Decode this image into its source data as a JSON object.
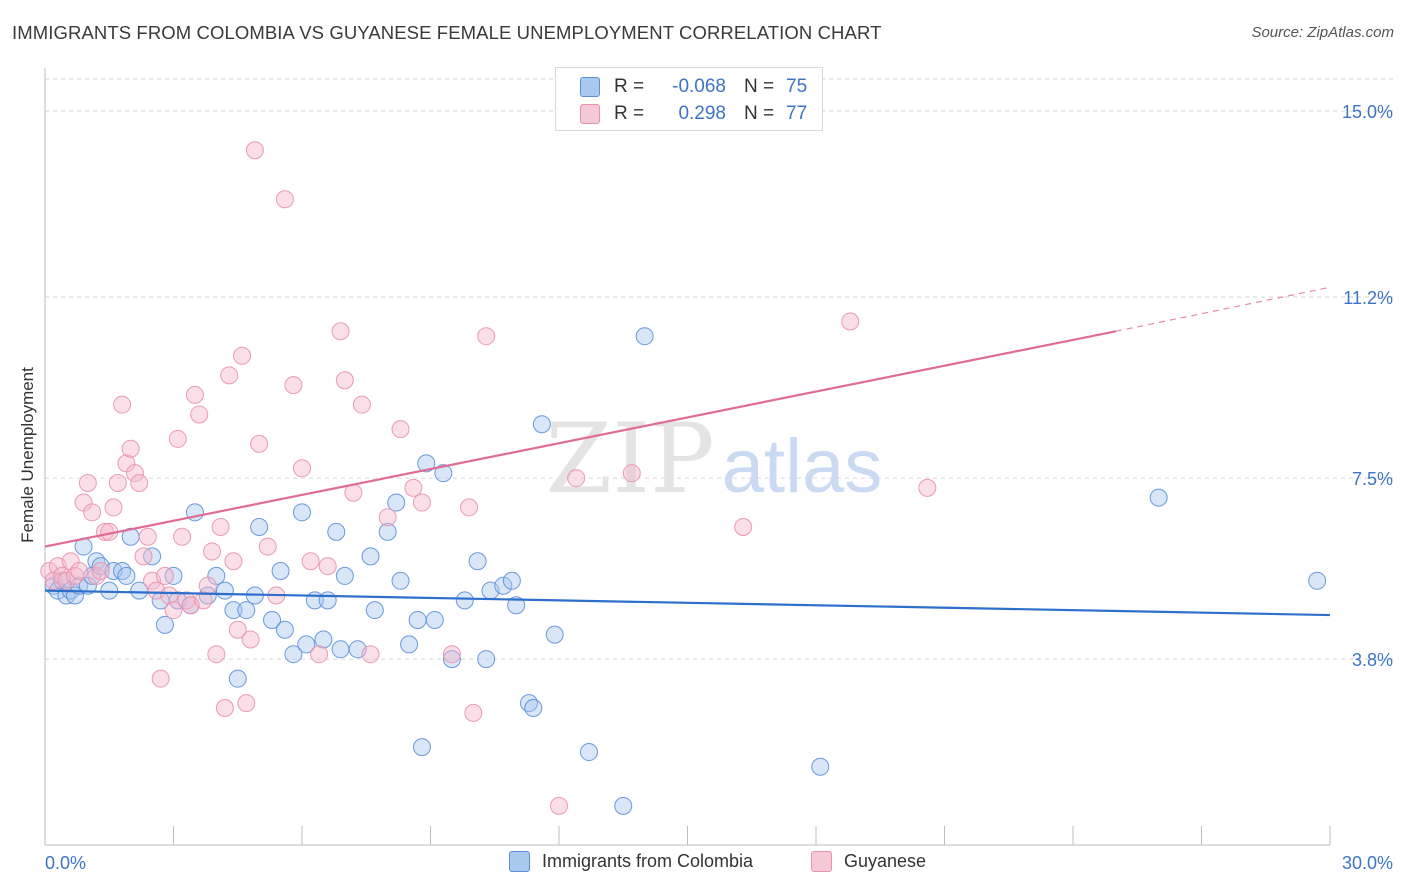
{
  "title": "IMMIGRANTS FROM COLOMBIA VS GUYANESE FEMALE UNEMPLOYMENT CORRELATION CHART",
  "source": "Source: ZipAtlas.com",
  "watermark": {
    "zip": "ZIP",
    "atlas": "atlas"
  },
  "colors": {
    "blue_fill": "#a9c8f0",
    "blue_stroke": "#5b8fd8",
    "blue_line": "#2f6fcc",
    "pink_fill": "#f5b7cb",
    "pink_stroke": "#e891ae",
    "pink_line": "#e06c95",
    "tick_text": "#3d74c6",
    "grid": "#d6d6d6"
  },
  "legend": {
    "rows": [
      {
        "r_label": "R =",
        "r_value": "-0.068",
        "n_label": "N =",
        "n_value": "75"
      },
      {
        "r_label": "R =",
        "r_value": "0.298",
        "n_label": "N =",
        "n_value": "77"
      }
    ]
  },
  "bottom_legend": [
    "Immigrants from Colombia",
    "Guyanese"
  ],
  "chart_data": {
    "type": "scatter",
    "title": "IMMIGRANTS FROM COLOMBIA VS GUYANESE FEMALE UNEMPLOYMENT CORRELATION CHART",
    "xlabel": "",
    "ylabel": "Female Unemployment",
    "xlim": [
      0,
      30
    ],
    "ylim": [
      0,
      15.8
    ],
    "x_tick_labels": [
      "0.0%",
      "30.0%"
    ],
    "y_ticks": [
      3.8,
      7.5,
      11.2,
      15.0
    ],
    "y_tick_labels": [
      "3.8%",
      "7.5%",
      "11.2%",
      "15.0%"
    ],
    "grid": "horizontal dashed",
    "series": [
      {
        "name": "Immigrants from Colombia",
        "trend": {
          "x0": 0,
          "y0": 5.2,
          "x1": 30,
          "y1": 4.7
        },
        "points": [
          [
            0.2,
            5.3
          ],
          [
            0.3,
            5.2
          ],
          [
            0.4,
            5.4
          ],
          [
            0.5,
            5.1
          ],
          [
            0.6,
            5.2
          ],
          [
            0.7,
            5.1
          ],
          [
            0.8,
            5.3
          ],
          [
            0.9,
            6.1
          ],
          [
            1.0,
            5.3
          ],
          [
            1.1,
            5.5
          ],
          [
            1.2,
            5.8
          ],
          [
            1.3,
            5.7
          ],
          [
            1.5,
            5.2
          ],
          [
            1.6,
            5.6
          ],
          [
            1.8,
            5.6
          ],
          [
            1.9,
            5.5
          ],
          [
            2.0,
            6.3
          ],
          [
            2.2,
            5.2
          ],
          [
            2.5,
            5.9
          ],
          [
            2.7,
            5.0
          ],
          [
            2.8,
            4.5
          ],
          [
            3.0,
            5.5
          ],
          [
            3.1,
            5.0
          ],
          [
            3.4,
            4.9
          ],
          [
            3.5,
            6.8
          ],
          [
            3.8,
            5.1
          ],
          [
            4.0,
            5.5
          ],
          [
            4.2,
            5.2
          ],
          [
            4.4,
            4.8
          ],
          [
            4.5,
            3.4
          ],
          [
            4.7,
            4.8
          ],
          [
            4.9,
            5.1
          ],
          [
            5.0,
            6.5
          ],
          [
            5.3,
            4.6
          ],
          [
            5.5,
            5.6
          ],
          [
            5.6,
            4.4
          ],
          [
            5.8,
            3.9
          ],
          [
            6.0,
            6.8
          ],
          [
            6.1,
            4.1
          ],
          [
            6.3,
            5.0
          ],
          [
            6.5,
            4.2
          ],
          [
            6.6,
            5.0
          ],
          [
            6.8,
            6.4
          ],
          [
            6.9,
            4.0
          ],
          [
            7.0,
            5.5
          ],
          [
            7.3,
            4.0
          ],
          [
            7.6,
            5.9
          ],
          [
            7.7,
            4.8
          ],
          [
            8.0,
            6.4
          ],
          [
            8.2,
            7.0
          ],
          [
            8.3,
            5.4
          ],
          [
            8.5,
            4.1
          ],
          [
            8.7,
            4.6
          ],
          [
            8.8,
            2.0
          ],
          [
            8.9,
            7.8
          ],
          [
            9.1,
            4.6
          ],
          [
            9.3,
            7.6
          ],
          [
            9.5,
            3.8
          ],
          [
            9.8,
            5.0
          ],
          [
            10.1,
            5.8
          ],
          [
            10.3,
            3.8
          ],
          [
            10.4,
            5.2
          ],
          [
            10.7,
            5.3
          ],
          [
            10.9,
            5.4
          ],
          [
            11.0,
            4.9
          ],
          [
            11.3,
            2.9
          ],
          [
            11.4,
            2.8
          ],
          [
            11.6,
            8.6
          ],
          [
            11.9,
            4.3
          ],
          [
            12.7,
            1.9
          ],
          [
            13.5,
            0.8
          ],
          [
            14.0,
            10.4
          ],
          [
            18.1,
            1.6
          ],
          [
            26.0,
            7.1
          ],
          [
            29.7,
            5.4
          ]
        ]
      },
      {
        "name": "Guyanese",
        "trend": {
          "x0": 0,
          "y0": 6.1,
          "x1": 25,
          "y1": 10.5,
          "dashed_to_x": 30,
          "dashed_to_y": 11.4
        },
        "points": [
          [
            0.1,
            5.6
          ],
          [
            0.2,
            5.4
          ],
          [
            0.3,
            5.7
          ],
          [
            0.4,
            5.5
          ],
          [
            0.5,
            5.4
          ],
          [
            0.6,
            5.8
          ],
          [
            0.7,
            5.5
          ],
          [
            0.8,
            5.6
          ],
          [
            0.9,
            7.0
          ],
          [
            1.0,
            7.4
          ],
          [
            1.1,
            6.8
          ],
          [
            1.2,
            5.5
          ],
          [
            1.3,
            5.6
          ],
          [
            1.4,
            6.4
          ],
          [
            1.5,
            6.4
          ],
          [
            1.6,
            6.9
          ],
          [
            1.7,
            7.4
          ],
          [
            1.8,
            9.0
          ],
          [
            1.9,
            7.8
          ],
          [
            2.0,
            8.1
          ],
          [
            2.1,
            7.6
          ],
          [
            2.2,
            7.4
          ],
          [
            2.3,
            5.9
          ],
          [
            2.4,
            6.3
          ],
          [
            2.5,
            5.4
          ],
          [
            2.6,
            5.2
          ],
          [
            2.7,
            3.4
          ],
          [
            2.8,
            5.5
          ],
          [
            2.9,
            5.1
          ],
          [
            3.0,
            4.8
          ],
          [
            3.1,
            8.3
          ],
          [
            3.2,
            6.3
          ],
          [
            3.3,
            5.0
          ],
          [
            3.4,
            4.9
          ],
          [
            3.5,
            9.2
          ],
          [
            3.6,
            8.8
          ],
          [
            3.7,
            5.0
          ],
          [
            3.8,
            5.3
          ],
          [
            3.9,
            6.0
          ],
          [
            4.0,
            3.9
          ],
          [
            4.1,
            6.5
          ],
          [
            4.2,
            2.8
          ],
          [
            4.3,
            9.6
          ],
          [
            4.4,
            5.8
          ],
          [
            4.5,
            4.4
          ],
          [
            4.6,
            10.0
          ],
          [
            4.7,
            2.9
          ],
          [
            4.8,
            4.2
          ],
          [
            4.9,
            14.2
          ],
          [
            5.0,
            8.2
          ],
          [
            5.2,
            6.1
          ],
          [
            5.4,
            5.1
          ],
          [
            5.6,
            13.2
          ],
          [
            5.8,
            9.4
          ],
          [
            6.0,
            7.7
          ],
          [
            6.2,
            5.8
          ],
          [
            6.4,
            3.9
          ],
          [
            6.6,
            5.7
          ],
          [
            6.9,
            10.5
          ],
          [
            7.0,
            9.5
          ],
          [
            7.2,
            7.2
          ],
          [
            7.4,
            9.0
          ],
          [
            7.6,
            3.9
          ],
          [
            8.0,
            6.7
          ],
          [
            8.3,
            8.5
          ],
          [
            8.6,
            7.3
          ],
          [
            8.8,
            7.0
          ],
          [
            9.5,
            3.9
          ],
          [
            9.9,
            6.9
          ],
          [
            10.0,
            2.7
          ],
          [
            10.3,
            10.4
          ],
          [
            12.0,
            0.8
          ],
          [
            12.4,
            7.5
          ],
          [
            13.7,
            7.6
          ],
          [
            16.3,
            6.5
          ],
          [
            18.8,
            10.7
          ],
          [
            20.6,
            7.3
          ]
        ]
      }
    ]
  }
}
